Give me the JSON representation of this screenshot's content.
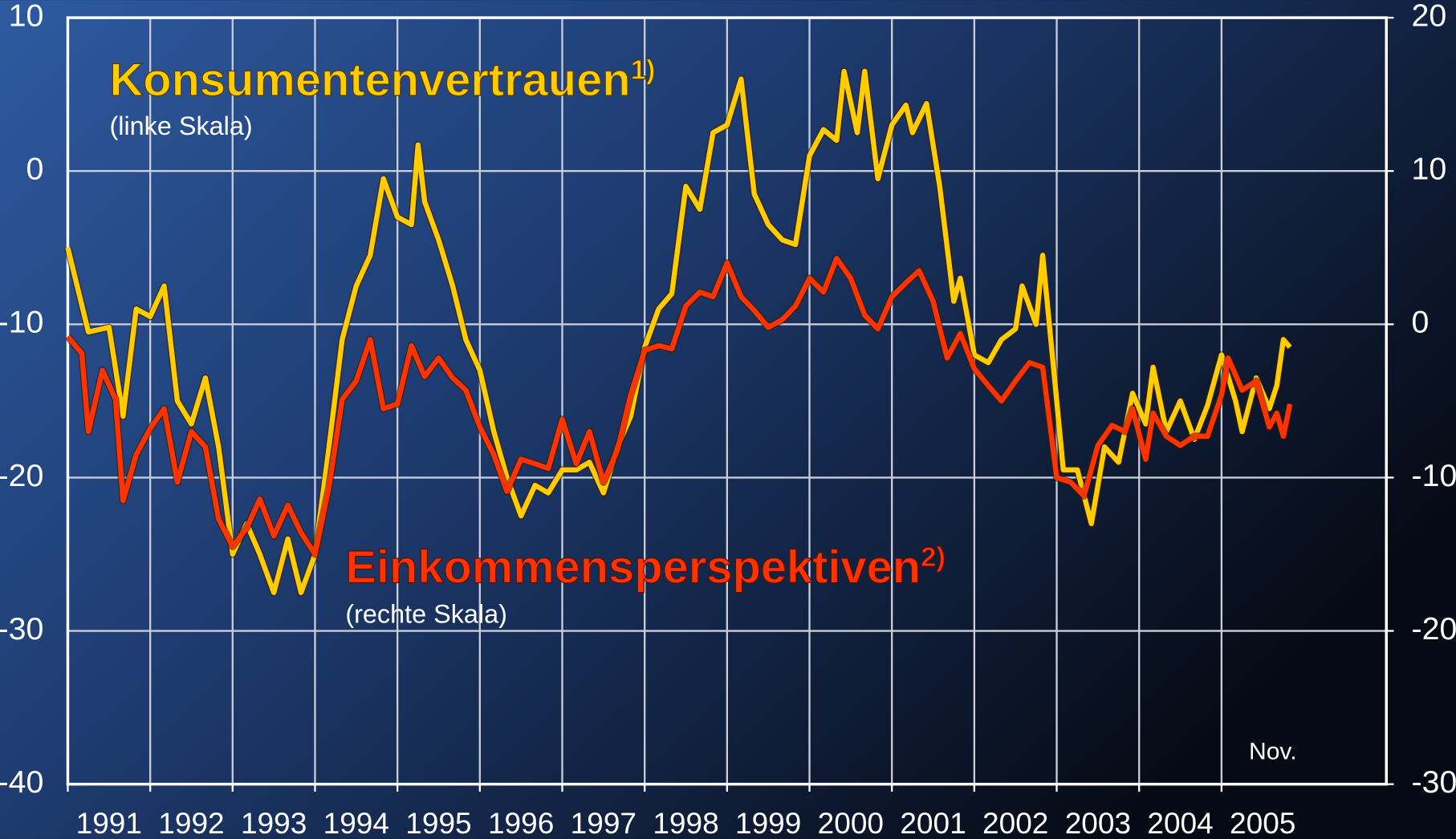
{
  "chart_data": {
    "type": "line",
    "xlim": [
      1991,
      2007
    ],
    "xticks": [
      1991,
      1992,
      1993,
      1994,
      1995,
      1996,
      1997,
      1998,
      1999,
      2000,
      2001,
      2002,
      2003,
      2004,
      2005
    ],
    "ylim": [
      -40,
      10
    ],
    "yticks": [
      -40,
      -30,
      -20,
      -10,
      0,
      10
    ],
    "y2lim": [
      -30,
      20
    ],
    "y2ticks": [
      -30,
      -20,
      -10,
      0,
      10,
      20
    ],
    "grid": true,
    "annotations": [
      {
        "text": "Konsumentenvertrauen",
        "sup": "1)",
        "note": "(linke Skala)"
      },
      {
        "text": "Einkommensperspektiven",
        "sup": "2)",
        "note": "(rechte Skala)"
      },
      {
        "text": "Nov."
      }
    ],
    "series": [
      {
        "name": "Konsumentenvertrauen",
        "color": "#ffcc00",
        "axis": "y",
        "x": [
          1991.0,
          1991.25,
          1991.5,
          1991.67,
          1991.83,
          1992.0,
          1992.17,
          1992.33,
          1992.5,
          1992.67,
          1992.83,
          1993.0,
          1993.17,
          1993.33,
          1993.5,
          1993.67,
          1993.83,
          1994.0,
          1994.17,
          1994.33,
          1994.5,
          1994.67,
          1994.83,
          1995.0,
          1995.17,
          1995.25,
          1995.33,
          1995.5,
          1995.67,
          1995.83,
          1996.0,
          1996.17,
          1996.33,
          1996.5,
          1996.67,
          1996.83,
          1997.0,
          1997.17,
          1997.33,
          1997.5,
          1997.67,
          1997.83,
          1998.0,
          1998.17,
          1998.33,
          1998.5,
          1998.67,
          1998.83,
          1999.0,
          1999.17,
          1999.33,
          1999.5,
          1999.67,
          1999.83,
          2000.0,
          2000.17,
          2000.33,
          2000.42,
          2000.58,
          2000.67,
          2000.83,
          2001.0,
          2001.17,
          2001.25,
          2001.42,
          2001.58,
          2001.75,
          2001.83,
          2002.0,
          2002.17,
          2002.33,
          2002.5,
          2002.58,
          2002.75,
          2002.83,
          2003.0,
          2003.08,
          2003.25,
          2003.42,
          2003.58,
          2003.75,
          2003.92,
          2004.08,
          2004.17,
          2004.33,
          2004.5,
          2004.67,
          2004.83,
          2005.0,
          2005.17,
          2005.25,
          2005.42,
          2005.58,
          2005.67,
          2005.75,
          2005.83
        ],
        "values": [
          -5,
          -10.5,
          -10.2,
          -16,
          -9,
          -9.5,
          -7.5,
          -15,
          -16.5,
          -13.5,
          -18,
          -25,
          -23,
          -25,
          -27.5,
          -24,
          -27.5,
          -25,
          -18,
          -11,
          -7.5,
          -5.5,
          -0.5,
          -3,
          -3.5,
          1.7,
          -2,
          -4.5,
          -7.5,
          -11,
          -13,
          -17,
          -20,
          -22.5,
          -20.5,
          -21,
          -19.5,
          -19.5,
          -19,
          -21,
          -18,
          -16,
          -11.5,
          -9,
          -8,
          -1,
          -2.5,
          2.5,
          3,
          6,
          -1.5,
          -3.5,
          -4.5,
          -4.8,
          1,
          2.7,
          2,
          6.5,
          2.5,
          6.5,
          -0.5,
          3,
          4.3,
          2.5,
          4.4,
          -1,
          -8.5,
          -7,
          -12,
          -12.5,
          -11,
          -10.3,
          -7.5,
          -10,
          -5.5,
          -15,
          -19.5,
          -19.5,
          -23,
          -18,
          -19,
          -14.5,
          -16.5,
          -12.8,
          -17,
          -15,
          -17.5,
          -15.3,
          -12,
          -15,
          -17,
          -13.5,
          -15.5,
          -14,
          -11,
          -11.5
        ]
      },
      {
        "name": "Einkommensperspektiven",
        "color": "#ff3300",
        "axis": "y2",
        "x": [
          1991.0,
          1991.17,
          1991.25,
          1991.42,
          1991.58,
          1991.67,
          1991.83,
          1992.0,
          1992.17,
          1992.33,
          1992.5,
          1992.67,
          1992.83,
          1993.0,
          1993.17,
          1993.33,
          1993.5,
          1993.67,
          1993.83,
          1994.0,
          1994.17,
          1994.33,
          1994.5,
          1994.67,
          1994.83,
          1995.0,
          1995.17,
          1995.33,
          1995.5,
          1995.67,
          1995.83,
          1996.0,
          1996.17,
          1996.33,
          1996.5,
          1996.67,
          1996.83,
          1997.0,
          1997.17,
          1997.33,
          1997.5,
          1997.67,
          1997.83,
          1998.0,
          1998.17,
          1998.33,
          1998.5,
          1998.67,
          1998.83,
          1999.0,
          1999.17,
          1999.33,
          1999.5,
          1999.67,
          1999.83,
          2000.0,
          2000.17,
          2000.33,
          2000.5,
          2000.67,
          2000.83,
          2001.0,
          2001.17,
          2001.33,
          2001.5,
          2001.67,
          2001.83,
          2002.0,
          2002.17,
          2002.33,
          2002.5,
          2002.67,
          2002.83,
          2003.0,
          2003.17,
          2003.33,
          2003.5,
          2003.67,
          2003.83,
          2003.92,
          2004.08,
          2004.17,
          2004.33,
          2004.5,
          2004.67,
          2004.83,
          2005.0,
          2005.08,
          2005.25,
          2005.42,
          2005.58,
          2005.67,
          2005.75,
          2005.83
        ],
        "values": [
          -0.8,
          -1.9,
          -7,
          -3,
          -4.9,
          -11.5,
          -8.5,
          -6.8,
          -5.5,
          -10.3,
          -7,
          -8,
          -12.7,
          -14.5,
          -13.3,
          -11.4,
          -13.8,
          -11.8,
          -13.6,
          -15,
          -10.6,
          -4.9,
          -3.7,
          -1,
          -5.5,
          -5.2,
          -1.4,
          -3.4,
          -2.2,
          -3.5,
          -4.3,
          -6.7,
          -8.5,
          -10.9,
          -8.8,
          -9.1,
          -9.4,
          -6.2,
          -9.1,
          -7,
          -10.3,
          -8.2,
          -4.6,
          -1.7,
          -1.4,
          -1.6,
          1.2,
          2.1,
          1.8,
          4,
          1.8,
          0.9,
          -0.2,
          0.3,
          1.2,
          3,
          2.1,
          4.3,
          3,
          0.6,
          -0.3,
          1.8,
          2.7,
          3.5,
          1.5,
          -2.2,
          -0.6,
          -2.9,
          -4,
          -5,
          -3.7,
          -2.5,
          -2.8,
          -10,
          -10.3,
          -11.2,
          -7.9,
          -6.6,
          -7,
          -5.5,
          -8.8,
          -5.8,
          -7.3,
          -7.9,
          -7.3,
          -7.3,
          -4.6,
          -2.2,
          -4.3,
          -3.7,
          -6.7,
          -5.8,
          -7.3,
          -5.2
        ]
      }
    ]
  }
}
